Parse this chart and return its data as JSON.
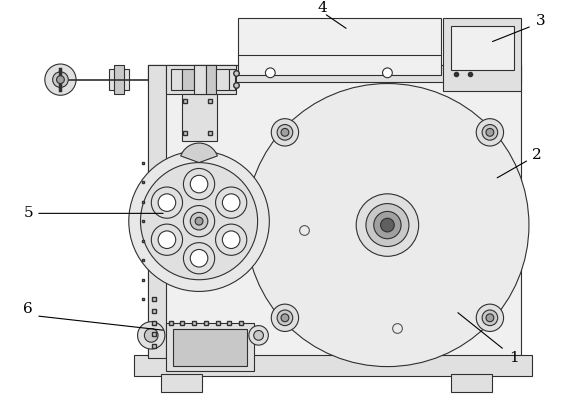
{
  "bg_color": "#ffffff",
  "lc": "#303030",
  "lc2": "#555555",
  "fill_main": "#f0f0f0",
  "fill_mid": "#e0e0e0",
  "fill_dark": "#c8c8c8",
  "fill_darker": "#a0a0a0",
  "fill_very_dark": "#606060"
}
